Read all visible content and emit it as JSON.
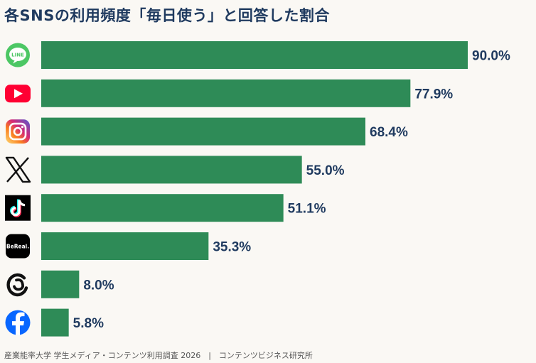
{
  "title": "各SNSの利用頻度「毎日使う」と回答した割合",
  "source": "産業能率大学 学生メディア・コンテンツ利用調査 2026　|　コンテンツビジネス研究所",
  "colors": {
    "bar": "#2e8b57",
    "label": "#1f3a5f",
    "background": "#faf8f4"
  },
  "chart_data": {
    "type": "bar",
    "orientation": "horizontal",
    "categories": [
      "LINE",
      "YouTube",
      "Instagram",
      "X",
      "TikTok",
      "BeReal.",
      "Threads",
      "Facebook"
    ],
    "category_icons": [
      "line-icon",
      "youtube-icon",
      "instagram-icon",
      "x-icon",
      "tiktok-icon",
      "bereal-icon",
      "threads-icon",
      "facebook-icon"
    ],
    "values": [
      90.0,
      77.9,
      68.4,
      55.0,
      51.1,
      35.3,
      8.0,
      5.8
    ],
    "value_labels": [
      "90.0%",
      "77.9%",
      "68.4%",
      "55.0%",
      "51.1%",
      "35.3%",
      "8.0%",
      "5.8%"
    ],
    "xlim": [
      0,
      100
    ],
    "grid": false,
    "legend": "none"
  }
}
